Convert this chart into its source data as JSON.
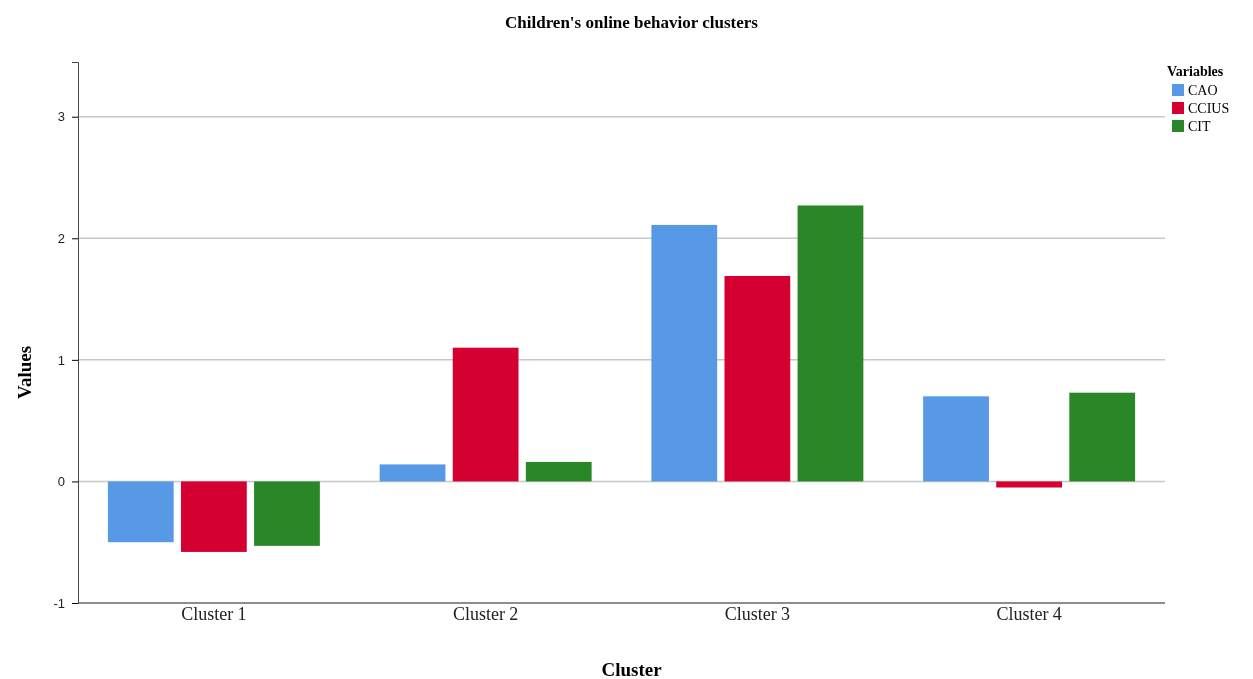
{
  "chart_data": {
    "type": "bar",
    "title": "Children's online behavior clusters",
    "xlabel": "Cluster",
    "ylabel": "Values",
    "legend_title": "Variables",
    "categories": [
      "Cluster 1",
      "Cluster 2",
      "Cluster 3",
      "Cluster 4"
    ],
    "series": [
      {
        "name": "CAO",
        "color": "#5899e6",
        "values": [
          -0.5,
          0.14,
          2.11,
          0.7
        ]
      },
      {
        "name": "CCIUS",
        "color": "#d50032",
        "values": [
          -0.58,
          1.1,
          1.69,
          -0.05
        ]
      },
      {
        "name": "CIT",
        "color": "#2a8728",
        "values": [
          -0.53,
          0.16,
          2.27,
          0.73
        ]
      }
    ],
    "ylim": [
      -1,
      3.45
    ],
    "yticks": [
      -1,
      0,
      1,
      2,
      3
    ],
    "grid": "y",
    "legend": "top right"
  }
}
